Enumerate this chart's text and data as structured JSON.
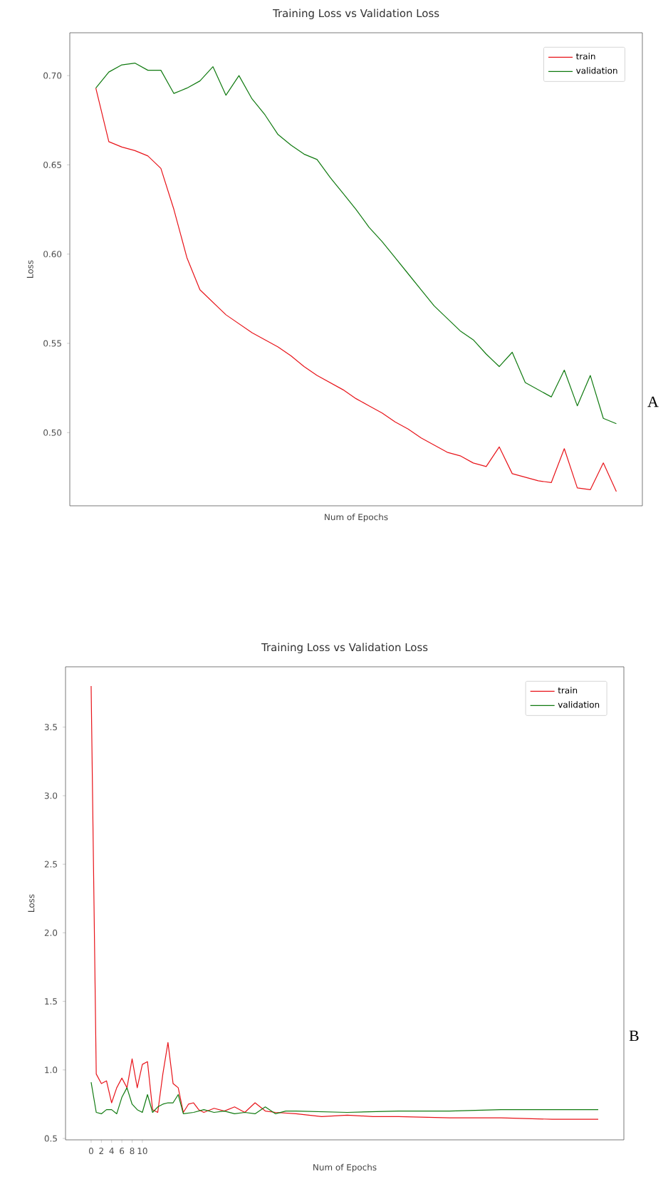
{
  "chart_data": [
    {
      "type": "line",
      "title": "Training Loss vs Validation Loss",
      "xlabel": "Num of Epochs",
      "ylabel": "Loss",
      "categories": [
        null,
        null,
        null,
        null,
        null,
        null,
        null,
        null,
        null,
        null,
        null,
        null,
        null,
        null,
        null,
        null,
        null,
        null,
        null,
        null,
        null,
        null,
        null,
        null,
        null,
        null,
        null,
        null,
        null,
        null,
        null,
        null,
        null,
        null,
        null,
        null,
        null,
        null,
        null,
        null,
        null
      ],
      "ylim": [
        0.459,
        0.724
      ],
      "tick_labels": "y",
      "yticks": [
        {
          "value": 0.5,
          "label": "0.50"
        },
        {
          "value": 0.55,
          "label": "0.55"
        },
        {
          "value": 0.6,
          "label": "0.60"
        },
        {
          "value": 0.65,
          "label": "0.65"
        },
        {
          "value": 0.7,
          "label": "0.70"
        }
      ],
      "legend": "top right",
      "annotations": [
        "A"
      ],
      "series": [
        {
          "name": "train",
          "color": "#e8141a",
          "values": [
            0.693,
            0.663,
            0.66,
            0.658,
            0.655,
            0.648,
            0.625,
            0.598,
            0.58,
            0.573,
            0.566,
            0.561,
            0.556,
            0.552,
            0.548,
            0.543,
            0.537,
            0.532,
            0.528,
            0.524,
            0.519,
            0.515,
            0.511,
            0.506,
            0.502,
            0.497,
            0.493,
            0.489,
            0.487,
            0.483,
            0.481,
            0.492,
            0.477,
            0.475,
            0.473,
            0.472,
            0.491,
            0.469,
            0.468,
            0.483,
            0.467
          ]
        },
        {
          "name": "validation",
          "color": "#107a10",
          "values": [
            0.693,
            0.702,
            0.706,
            0.707,
            0.703,
            0.703,
            0.69,
            0.693,
            0.697,
            0.705,
            0.689,
            0.7,
            0.687,
            0.678,
            0.667,
            0.661,
            0.656,
            0.653,
            0.643,
            0.634,
            0.625,
            0.615,
            0.607,
            0.598,
            0.589,
            0.58,
            0.571,
            0.564,
            0.557,
            0.552,
            0.544,
            0.537,
            0.545,
            0.528,
            0.524,
            0.52,
            0.535,
            0.515,
            0.532,
            0.508,
            0.505
          ]
        }
      ]
    },
    {
      "type": "line",
      "title": "Training Loss vs Validation Loss",
      "xlabel": "Num of Epochs",
      "ylabel": "Loss",
      "xlim": [
        -5,
        104
      ],
      "ylim": [
        0.49,
        3.94
      ],
      "xticks": [
        0,
        2,
        4,
        6,
        8,
        10
      ],
      "yticks": [
        {
          "value": 0.5,
          "label": "0.5"
        },
        {
          "value": 1.0,
          "label": "1.0"
        },
        {
          "value": 1.5,
          "label": "1.5"
        },
        {
          "value": 2.0,
          "label": "2.0"
        },
        {
          "value": 2.5,
          "label": "2.5"
        },
        {
          "value": 3.0,
          "label": "3.0"
        },
        {
          "value": 3.5,
          "label": "3.5"
        }
      ],
      "legend": "top right",
      "annotations": [
        "B"
      ],
      "series": [
        {
          "name": "train",
          "color": "#e8141a",
          "x": [
            0,
            1,
            2,
            3,
            4,
            5,
            6,
            7,
            8,
            9,
            10,
            11,
            12,
            13,
            14,
            15,
            16,
            17,
            18,
            19,
            20,
            21,
            22,
            24,
            26,
            28,
            30,
            32,
            34,
            36,
            40,
            45,
            50,
            55,
            60,
            70,
            80,
            90,
            99
          ],
          "values": [
            3.8,
            0.97,
            0.9,
            0.92,
            0.76,
            0.87,
            0.94,
            0.87,
            1.08,
            0.87,
            1.04,
            1.06,
            0.71,
            0.69,
            0.97,
            1.2,
            0.9,
            0.87,
            0.69,
            0.75,
            0.76,
            0.71,
            0.69,
            0.72,
            0.7,
            0.73,
            0.69,
            0.76,
            0.7,
            0.69,
            0.68,
            0.66,
            0.67,
            0.66,
            0.66,
            0.65,
            0.65,
            0.64,
            0.64
          ]
        },
        {
          "name": "validation",
          "color": "#107a10",
          "x": [
            0,
            1,
            2,
            3,
            4,
            5,
            6,
            7,
            8,
            9,
            10,
            11,
            12,
            13,
            14,
            15,
            16,
            17,
            18,
            20,
            22,
            24,
            26,
            28,
            30,
            32,
            34,
            36,
            38,
            40,
            50,
            60,
            70,
            80,
            90,
            99
          ],
          "values": [
            0.91,
            0.69,
            0.68,
            0.71,
            0.71,
            0.68,
            0.8,
            0.87,
            0.75,
            0.71,
            0.69,
            0.82,
            0.69,
            0.73,
            0.75,
            0.76,
            0.76,
            0.82,
            0.68,
            0.69,
            0.71,
            0.69,
            0.7,
            0.68,
            0.69,
            0.68,
            0.73,
            0.68,
            0.7,
            0.7,
            0.69,
            0.7,
            0.7,
            0.71,
            0.71,
            0.71
          ]
        }
      ]
    }
  ]
}
